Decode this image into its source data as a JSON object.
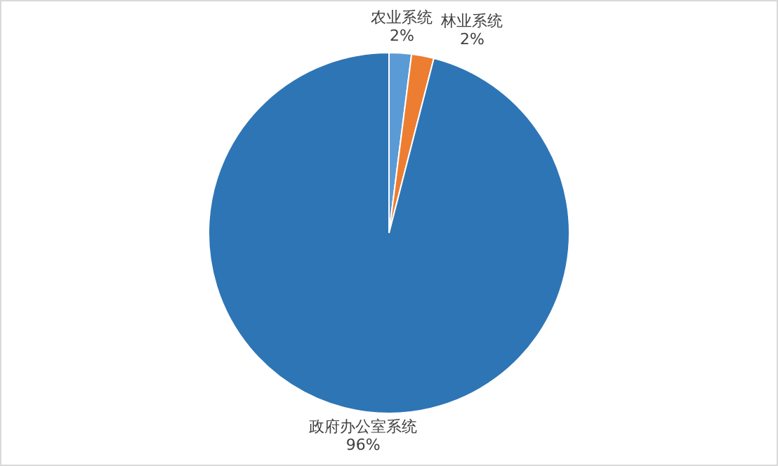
{
  "chart_data": {
    "type": "pie",
    "categories": [
      "农业系统",
      "林业系统",
      "政府办公室系统"
    ],
    "values": [
      2,
      2,
      96
    ],
    "colors": [
      "#5b9bd5",
      "#ed7d31",
      "#2e75b6"
    ],
    "value_labels": [
      "2%",
      "2%",
      "96%"
    ],
    "legend": false
  }
}
